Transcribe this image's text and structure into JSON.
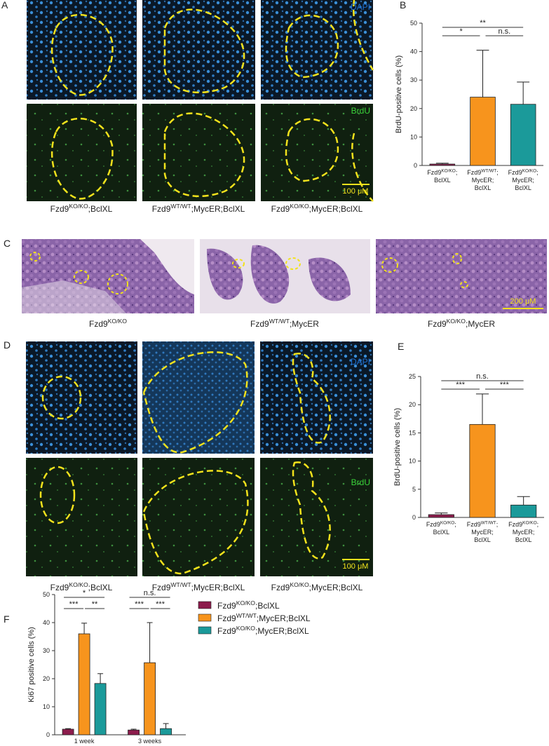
{
  "panel_a": {
    "label": "A",
    "channels": [
      "DAPI",
      "BrdU"
    ],
    "scale_bar": "100 μM",
    "captions": [
      {
        "gene": "Fzd9",
        "genotype": "KO/KO",
        "rest": ";BclXL"
      },
      {
        "gene": "Fzd9",
        "genotype": "WT/WT",
        "rest": ";MycER;BclXL"
      },
      {
        "gene": "Fzd9",
        "genotype": "KO/KO",
        "rest": ";MycER;BclXL"
      }
    ]
  },
  "panel_c": {
    "label": "C",
    "scale_bar": "200 μM",
    "captions": [
      {
        "gene": "Fzd9",
        "genotype": "KO/KO"
      },
      {
        "gene": "Fzd9",
        "genotype": "WT/WT",
        "rest": ";MycER"
      },
      {
        "gene": "Fzd9",
        "genotype": "KO/KO",
        "rest": ";MycER"
      }
    ]
  },
  "panel_d": {
    "label": "D",
    "channels": [
      "DAPI",
      "BrdU"
    ],
    "scale_bar": "100 μM",
    "captions": [
      {
        "gene": "Fzd9",
        "genotype": "KO/KO",
        "rest": ";BclXL"
      },
      {
        "gene": "Fzd9",
        "genotype": "WT/WT",
        "rest": ";MycER;BclXL"
      },
      {
        "gene": "Fzd9",
        "genotype": "KO/KO",
        "rest": ";MycER;BclXL"
      }
    ]
  },
  "chart_data": [
    {
      "type": "bar",
      "panel": "B",
      "y_label": "BrdU-positive cells (%)",
      "categories": [
        {
          "gene": "Fzd9",
          "genotype": "KO/KO",
          "lines": [
            ";",
            "BclXL"
          ]
        },
        {
          "gene": "Fzd9",
          "genotype": "WT/WT",
          "lines": [
            ";",
            "MycER;",
            "BclXL"
          ]
        },
        {
          "gene": "Fzd9",
          "genotype": "KO/KO",
          "lines": [
            ";",
            "MycER;",
            "BclXL"
          ]
        }
      ],
      "values": [
        0.5,
        24,
        21.5
      ],
      "errors": [
        0.3,
        16.5,
        7.8
      ],
      "colors": [
        "#8c1c4c",
        "#f7941d",
        "#1b9a9a"
      ],
      "ylim": [
        0,
        50
      ],
      "yticks": [
        0,
        10,
        20,
        30,
        40,
        50
      ],
      "significance": [
        "*",
        "n.s.",
        "**"
      ]
    },
    {
      "type": "bar",
      "panel": "E",
      "y_label": "BrdU-positive cells (%)",
      "categories": [
        {
          "gene": "Fzd9",
          "genotype": "KO/KO",
          "lines": [
            ";",
            "BclXL"
          ]
        },
        {
          "gene": "Fzd9",
          "genotype": "WT/WT",
          "lines": [
            ";",
            "MycER;",
            "BclXL"
          ]
        },
        {
          "gene": "Fzd9",
          "genotype": "KO/KO",
          "lines": [
            ";",
            "MycER;",
            "BclXL"
          ]
        }
      ],
      "values": [
        0.5,
        16.5,
        2.2
      ],
      "errors": [
        0.3,
        5.4,
        1.5
      ],
      "colors": [
        "#8c1c4c",
        "#f7941d",
        "#1b9a9a"
      ],
      "ylim": [
        0,
        25
      ],
      "yticks": [
        0,
        5,
        10,
        15,
        20,
        25
      ],
      "significance": [
        "***",
        "***",
        "n.s."
      ]
    },
    {
      "type": "bar",
      "panel": "F",
      "y_label": "Ki67 positive cells (%)",
      "categories": [
        "1 week",
        "3 weeks"
      ],
      "series": [
        {
          "name": {
            "gene": "Fzd9",
            "genotype": "KO/KO",
            "rest": ";BclXL"
          },
          "color": "#8c1c4c",
          "values": [
            2,
            1.7
          ],
          "errors": [
            0.2,
            0.3
          ]
        },
        {
          "name": {
            "gene": "Fzd9",
            "genotype": "WT/WT",
            "rest": ";MycER;BclXL"
          },
          "color": "#f7941d",
          "values": [
            36,
            25.7
          ],
          "errors": [
            3.8,
            14.3
          ]
        },
        {
          "name": {
            "gene": "Fzd9",
            "genotype": "KO/KO",
            "rest": ";MycER;BclXL"
          },
          "color": "#1b9a9a",
          "values": [
            18.3,
            2.2
          ],
          "errors": [
            3.5,
            1.8
          ]
        }
      ],
      "ylim": [
        0,
        50
      ],
      "yticks": [
        0,
        10,
        20,
        30,
        40,
        50
      ],
      "significance": [
        [
          "***",
          "**",
          "*"
        ],
        [
          "***",
          "***",
          "n.s."
        ]
      ]
    }
  ]
}
